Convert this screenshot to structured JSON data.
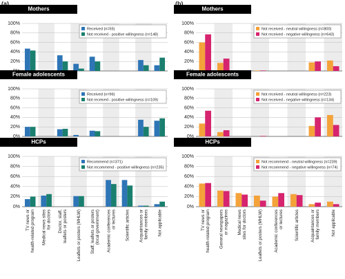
{
  "panel_labels": [
    "(a)",
    "(b)"
  ],
  "chart_data": [
    {
      "type": "bar",
      "title": "Mothers",
      "series": [
        {
          "name": "Received (n=55)",
          "color": "#2e75b6",
          "values": [
            47,
            0,
            33,
            15,
            30,
            0,
            0,
            23,
            12
          ]
        },
        {
          "name": "Not received - positive willingness (n=148)",
          "color": "#1a7f6e",
          "values": [
            43,
            0,
            20,
            5,
            20,
            0,
            0,
            12,
            28
          ]
        }
      ],
      "ylim": [
        0,
        100
      ],
      "yticks": [
        {
          "value": 0,
          "label": "0%"
        },
        {
          "value": 20,
          "label": "20%"
        },
        {
          "value": 40,
          "label": "40%"
        },
        {
          "value": 60,
          "label": "60%"
        },
        {
          "value": 80,
          "label": "80%"
        },
        {
          "value": 100,
          "label": "100%"
        }
      ]
    },
    {
      "type": "bar",
      "title": "Female adolescents",
      "series": [
        {
          "name": "Received (n=96)",
          "color": "#2e75b6",
          "values": [
            20,
            0,
            15,
            3,
            12,
            0,
            0,
            35,
            33
          ]
        },
        {
          "name": "Not received - positive willingness (n=109)",
          "color": "#1a7f6e",
          "values": [
            20,
            0,
            16,
            0,
            11,
            0,
            0,
            20,
            38
          ]
        }
      ],
      "ylim": [
        0,
        100
      ],
      "yticks": [
        {
          "value": 0,
          "label": "0%"
        },
        {
          "value": 20,
          "label": "20%"
        },
        {
          "value": 40,
          "label": "40%"
        },
        {
          "value": 60,
          "label": "60%"
        },
        {
          "value": 80,
          "label": "80%"
        },
        {
          "value": 100,
          "label": "100%"
        }
      ]
    },
    {
      "type": "bar",
      "title": "HCPs",
      "categories": [
        "TV news or\nhealth-related program",
        "Medical news sites\nfor doctors",
        "Doctor, staff,\nleaflets or posters",
        "Leaflets or posters (MHLW)",
        "Staff, leaflets or posters\n(local government)",
        "Academic conferences\nor lectures",
        "Scientific articles",
        "Acquaintances or\nfamily members",
        "Not applicable"
      ],
      "series": [
        {
          "name": "Recommend (n=371)",
          "color": "#2e75b6",
          "values": [
            15,
            22,
            0,
            21,
            0,
            53,
            53,
            2,
            5
          ]
        },
        {
          "name": "Not recommend - positive willingness (n=235)",
          "color": "#1a7f6e",
          "values": [
            20,
            25,
            0,
            21,
            0,
            45,
            42,
            2,
            10
          ]
        }
      ],
      "ylim": [
        0,
        100
      ],
      "yticks": [
        {
          "value": 0,
          "label": "0%"
        },
        {
          "value": 20,
          "label": "20%"
        },
        {
          "value": 40,
          "label": "40%"
        },
        {
          "value": 60,
          "label": "60%"
        },
        {
          "value": 80,
          "label": "80%"
        },
        {
          "value": 100,
          "label": "100%"
        }
      ]
    },
    {
      "type": "bar",
      "title": "Mothers",
      "series": [
        {
          "name": "Not received - neutral willingness (n=800)",
          "color": "#f4a23a",
          "values": [
            60,
            17,
            0,
            1,
            0,
            0,
            18,
            22
          ]
        },
        {
          "name": "Not received - negative willingness (n=643)",
          "color": "#d6246e",
          "values": [
            77,
            26,
            0,
            1,
            0,
            0,
            20,
            10
          ]
        }
      ],
      "ylim": [
        0,
        100
      ],
      "yticks": [
        {
          "value": 0,
          "label": "0%"
        },
        {
          "value": 20,
          "label": "20%"
        },
        {
          "value": 40,
          "label": "40%"
        },
        {
          "value": 60,
          "label": "60%"
        },
        {
          "value": 80,
          "label": "80%"
        },
        {
          "value": 100,
          "label": "100%"
        }
      ]
    },
    {
      "type": "bar",
      "title": "Female adolescents",
      "series": [
        {
          "name": "Not received - neutral willingness (n=223)",
          "color": "#f4a23a",
          "values": [
            27,
            9,
            0,
            0,
            0,
            0,
            22,
            45
          ]
        },
        {
          "name": "Not received - negative willingness (n=134)",
          "color": "#d6246e",
          "values": [
            54,
            13,
            0,
            1,
            0,
            0,
            40,
            24
          ]
        }
      ],
      "ylim": [
        0,
        100
      ],
      "yticks": [
        {
          "value": 0,
          "label": "0%"
        },
        {
          "value": 20,
          "label": "20%"
        },
        {
          "value": 40,
          "label": "40%"
        },
        {
          "value": 60,
          "label": "60%"
        },
        {
          "value": 80,
          "label": "80%"
        },
        {
          "value": 100,
          "label": "100%"
        }
      ]
    },
    {
      "type": "bar",
      "title": "HCPs",
      "categories": [
        "TV news or\nhealth-related program",
        "General newspapers\nor magazines",
        "Medical news\nsites for doctors",
        "Leaflets or posters (MHLW)",
        "Academic conferences\nor lectures",
        "Scientific articles",
        "Acquaintances or\nfamily members",
        "Not applicable"
      ],
      "series": [
        {
          "name": "Not recommend - neutral willingness (n=239)",
          "color": "#f4a23a",
          "values": [
            46,
            32,
            27,
            22,
            20,
            25,
            5,
            10
          ]
        },
        {
          "name": "Not recommend - negative willingness (n=74)",
          "color": "#d6246e",
          "values": [
            47,
            31,
            24,
            12,
            27,
            23,
            8,
            5
          ]
        }
      ],
      "ylim": [
        0,
        100
      ],
      "yticks": [
        {
          "value": 0,
          "label": "0%"
        },
        {
          "value": 20,
          "label": "20%"
        },
        {
          "value": 40,
          "label": "40%"
        },
        {
          "value": 60,
          "label": "60%"
        },
        {
          "value": 80,
          "label": "80%"
        },
        {
          "value": 100,
          "label": "100%"
        }
      ]
    }
  ]
}
